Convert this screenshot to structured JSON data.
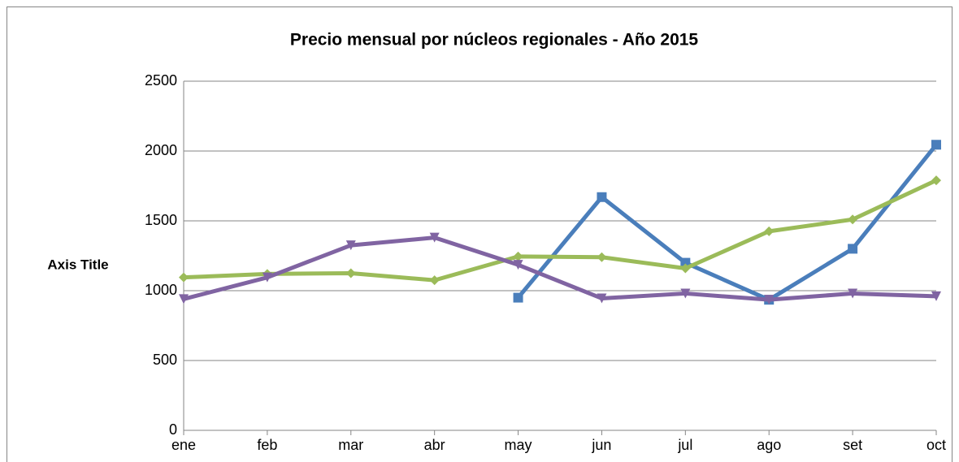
{
  "chart_data": {
    "type": "line",
    "title": "Precio mensual por núcleos regionales -  Año 2015",
    "y_label": "Axis Title",
    "categories": [
      "ene",
      "feb",
      "mar",
      "abr",
      "may",
      "jun",
      "jul",
      "ago",
      "set",
      "oct"
    ],
    "series": [
      {
        "color": "#4a7ebb",
        "marker": "square",
        "values": [
          null,
          null,
          null,
          null,
          950,
          1670,
          1200,
          935,
          1300,
          2045
        ]
      },
      {
        "color": "#9bbb59",
        "marker": "diamond",
        "values": [
          1095,
          1120,
          1125,
          1075,
          1245,
          1240,
          1160,
          1425,
          1510,
          1790
        ]
      },
      {
        "color": "#8064a2",
        "marker": "triangle-down",
        "values": [
          940,
          1095,
          1325,
          1380,
          1185,
          945,
          980,
          935,
          980,
          960
        ]
      }
    ],
    "ylim": [
      0,
      2500
    ],
    "yticks": [
      0,
      500,
      1000,
      1500,
      2000,
      2500
    ],
    "grid": true
  }
}
